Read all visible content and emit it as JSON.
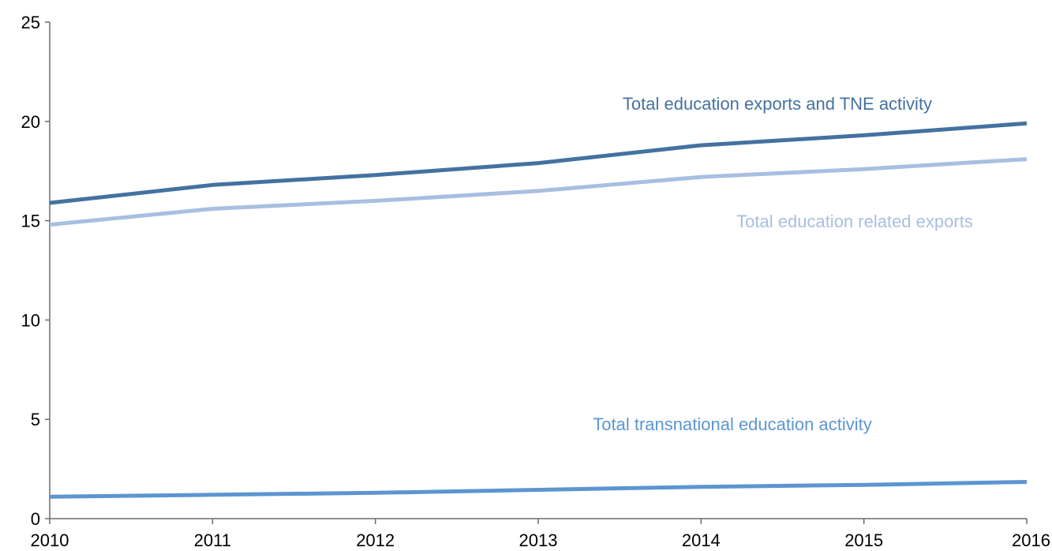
{
  "chart_data": {
    "type": "line",
    "x": [
      2010,
      2011,
      2012,
      2013,
      2014,
      2015,
      2016
    ],
    "xlim": [
      2010,
      2016
    ],
    "ylim": [
      0,
      25
    ],
    "yticks": [
      0,
      5,
      10,
      15,
      20,
      25
    ],
    "grid": false,
    "series": [
      {
        "name": "Total education exports and TNE activity",
        "values": [
          15.9,
          16.8,
          17.3,
          17.9,
          18.8,
          19.3,
          19.9
        ],
        "color": "#4472a0"
      },
      {
        "name": "Total education related exports",
        "values": [
          14.8,
          15.6,
          16.0,
          16.5,
          17.2,
          17.6,
          18.1
        ],
        "color": "#a7bfe0"
      },
      {
        "name": "Total transnational education activity",
        "values": [
          1.1,
          1.2,
          1.3,
          1.45,
          1.6,
          1.7,
          1.85
        ],
        "color": "#5c95d1"
      }
    ]
  }
}
